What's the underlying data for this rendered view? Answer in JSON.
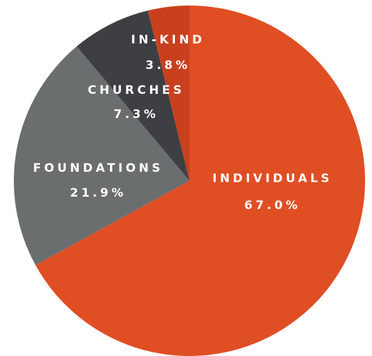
{
  "chart_data": {
    "type": "pie",
    "title": "",
    "slices": [
      {
        "label": "INDIVIDUALS",
        "value": 67.0,
        "value_label": "67.0%",
        "color": "#E04E24"
      },
      {
        "label": "FOUNDATIONS",
        "value": 21.9,
        "value_label": "21.9%",
        "color": "#6B6E6F"
      },
      {
        "label": "CHURCHES",
        "value": 7.3,
        "value_label": "7.3%",
        "color": "#3E3F42"
      },
      {
        "label": "IN-KIND",
        "value": 3.8,
        "value_label": "3.8%",
        "color": "#C9401F"
      }
    ],
    "start_angle_deg": 0,
    "direction": "clockwise",
    "legend": "none",
    "labels_inside_slices": true
  }
}
